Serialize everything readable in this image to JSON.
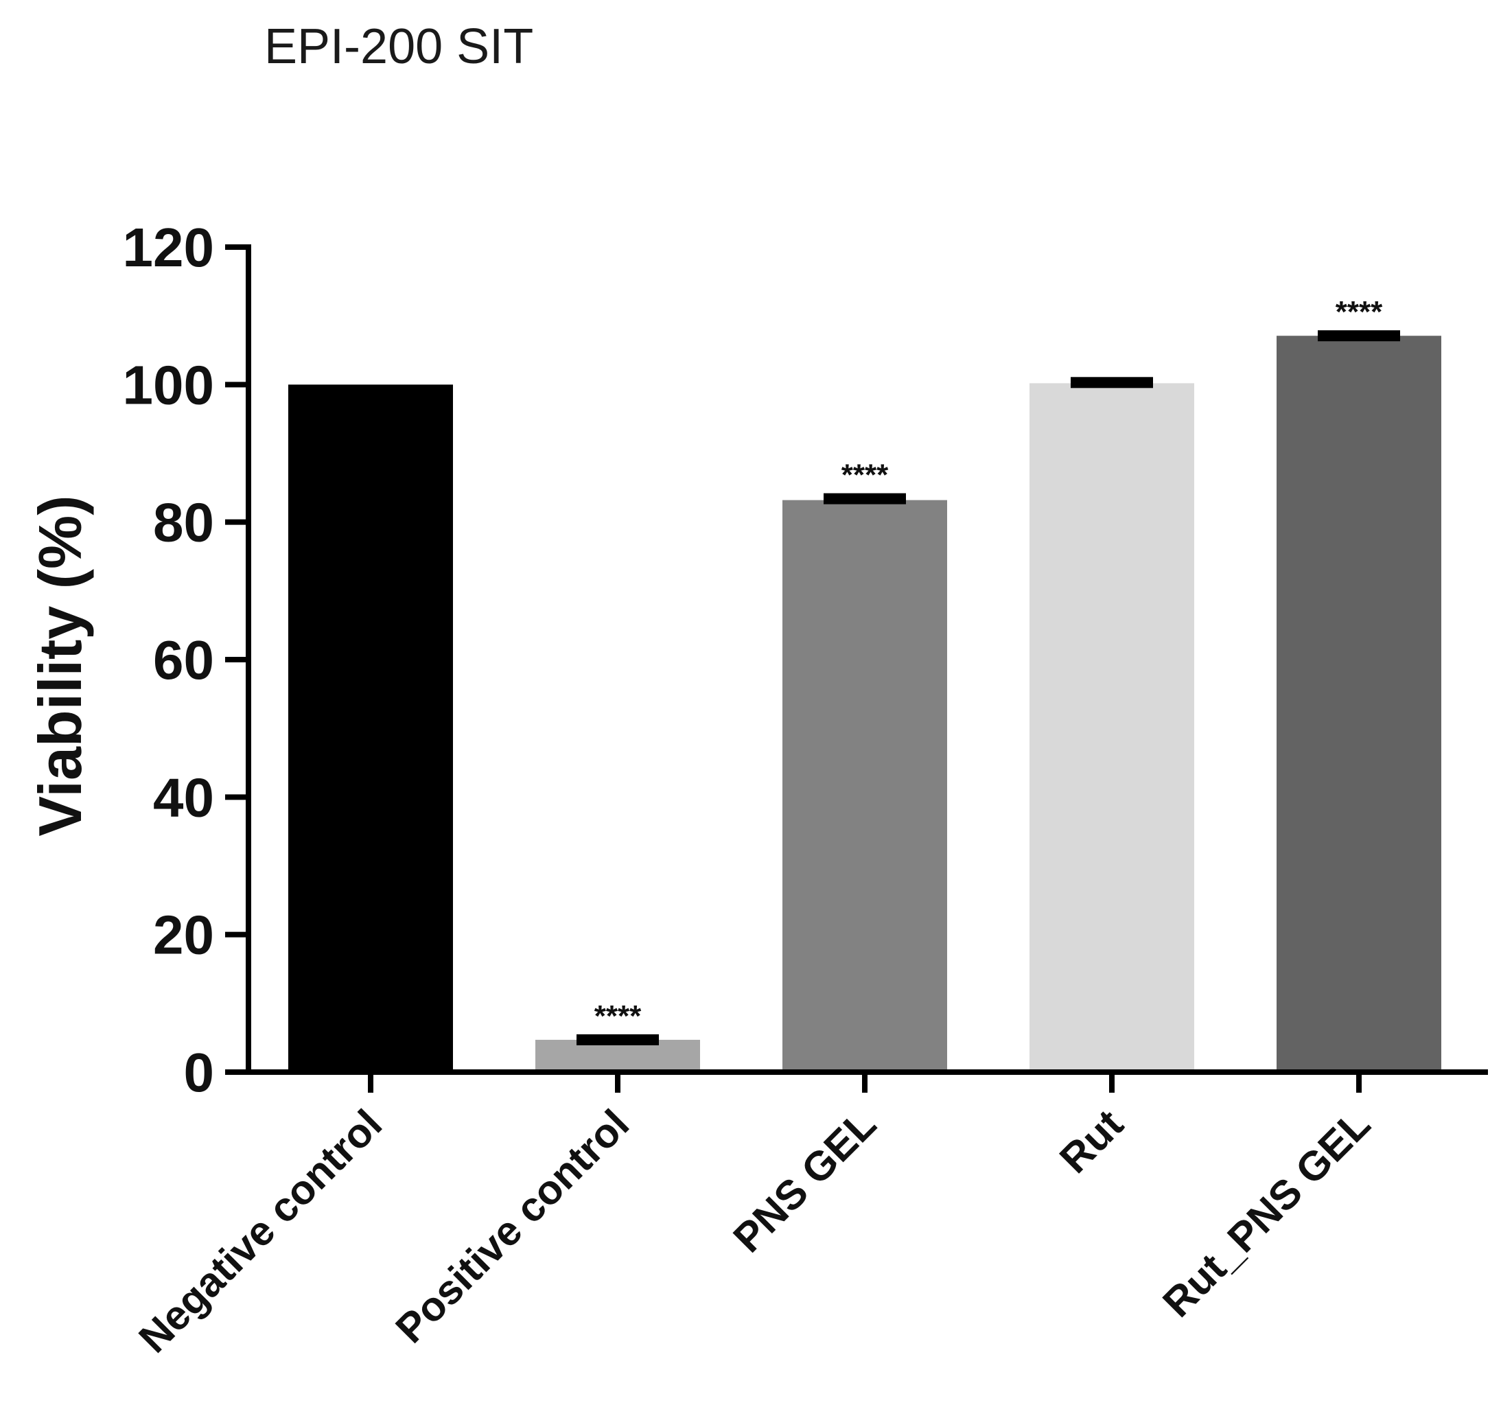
{
  "chart_data": {
    "type": "bar",
    "title": "EPI-200 SIT",
    "xlabel": "",
    "ylabel": "Viability (%)",
    "ylim": [
      0,
      120
    ],
    "yticks": [
      "0",
      "20",
      "40",
      "60",
      "80",
      "100",
      "120"
    ],
    "categories": [
      "Negative control",
      "Positive control",
      "PNS GEL",
      "Rut",
      "Rut_PNS GEL"
    ],
    "values": [
      100,
      4.7,
      83.2,
      100.2,
      107.1
    ],
    "errors": [
      0,
      0.8,
      1.0,
      0.9,
      0.8
    ],
    "significance": [
      "",
      "****",
      "****",
      "",
      "****"
    ],
    "colors": [
      "#000000",
      "#a6a6a6",
      "#828282",
      "#d9d9d9",
      "#636363"
    ],
    "grid": false
  }
}
